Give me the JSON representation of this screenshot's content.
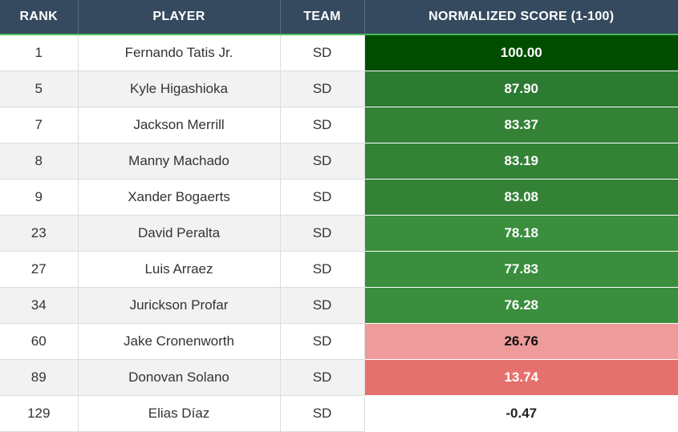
{
  "table": {
    "headers": {
      "rank": "RANK",
      "player": "PLAYER",
      "team": "TEAM",
      "score": "NORMALIZED SCORE (1-100)"
    },
    "rows": [
      {
        "rank": "1",
        "player": "Fernando Tatis Jr.",
        "team": "SD",
        "score": "100.00",
        "bg": "#004d00",
        "fg": "#ffffff"
      },
      {
        "rank": "5",
        "player": "Kyle Higashioka",
        "team": "SD",
        "score": "87.90",
        "bg": "#2d7a33",
        "fg": "#ffffff"
      },
      {
        "rank": "7",
        "player": "Jackson Merrill",
        "team": "SD",
        "score": "83.37",
        "bg": "#338236",
        "fg": "#ffffff"
      },
      {
        "rank": "8",
        "player": "Manny Machado",
        "team": "SD",
        "score": "83.19",
        "bg": "#338236",
        "fg": "#ffffff"
      },
      {
        "rank": "9",
        "player": "Xander Bogaerts",
        "team": "SD",
        "score": "83.08",
        "bg": "#338236",
        "fg": "#ffffff"
      },
      {
        "rank": "23",
        "player": "David Peralta",
        "team": "SD",
        "score": "78.18",
        "bg": "#3a8e3e",
        "fg": "#ffffff"
      },
      {
        "rank": "27",
        "player": "Luis Arraez",
        "team": "SD",
        "score": "77.83",
        "bg": "#3a8e3e",
        "fg": "#ffffff"
      },
      {
        "rank": "34",
        "player": "Jurickson Profar",
        "team": "SD",
        "score": "76.28",
        "bg": "#3a8e3e",
        "fg": "#ffffff"
      },
      {
        "rank": "60",
        "player": "Jake Cronenworth",
        "team": "SD",
        "score": "26.76",
        "bg": "#ed9b9b",
        "fg": "#111111"
      },
      {
        "rank": "89",
        "player": "Donovan Solano",
        "team": "SD",
        "score": "13.74",
        "bg": "#e5716f",
        "fg": "#ffffff"
      },
      {
        "rank": "129",
        "player": "Elias Díaz",
        "team": "SD",
        "score": "-0.47",
        "bg": "#ffffff",
        "fg": "#222222"
      }
    ]
  }
}
